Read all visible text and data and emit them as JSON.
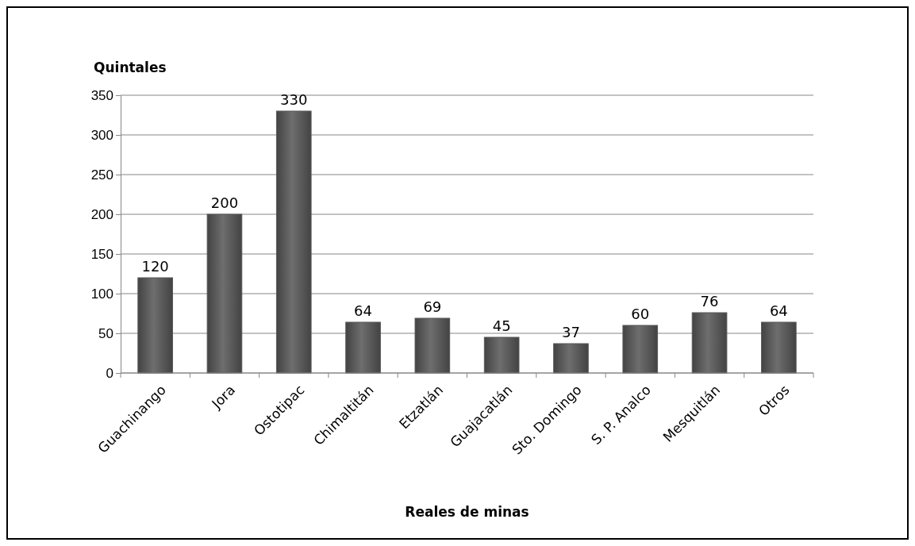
{
  "chart_data": {
    "type": "bar",
    "ylabel": "Quintales",
    "xlabel": "Reales de minas",
    "categories": [
      "Guachinango",
      "Jora",
      "Ostotipac",
      "Chimaltitán",
      "Etzatlán",
      "Guajacatlán",
      "Sto. Domingo",
      "S. P. Analco",
      "Mesquitlán",
      "Otros"
    ],
    "values": [
      120,
      200,
      330,
      64,
      69,
      45,
      37,
      60,
      76,
      64
    ],
    "color": "#595959",
    "ylim": [
      0,
      350
    ],
    "yticks": [
      0,
      50,
      100,
      150,
      200,
      250,
      300,
      350
    ],
    "grid": "y",
    "data_labels": true
  }
}
